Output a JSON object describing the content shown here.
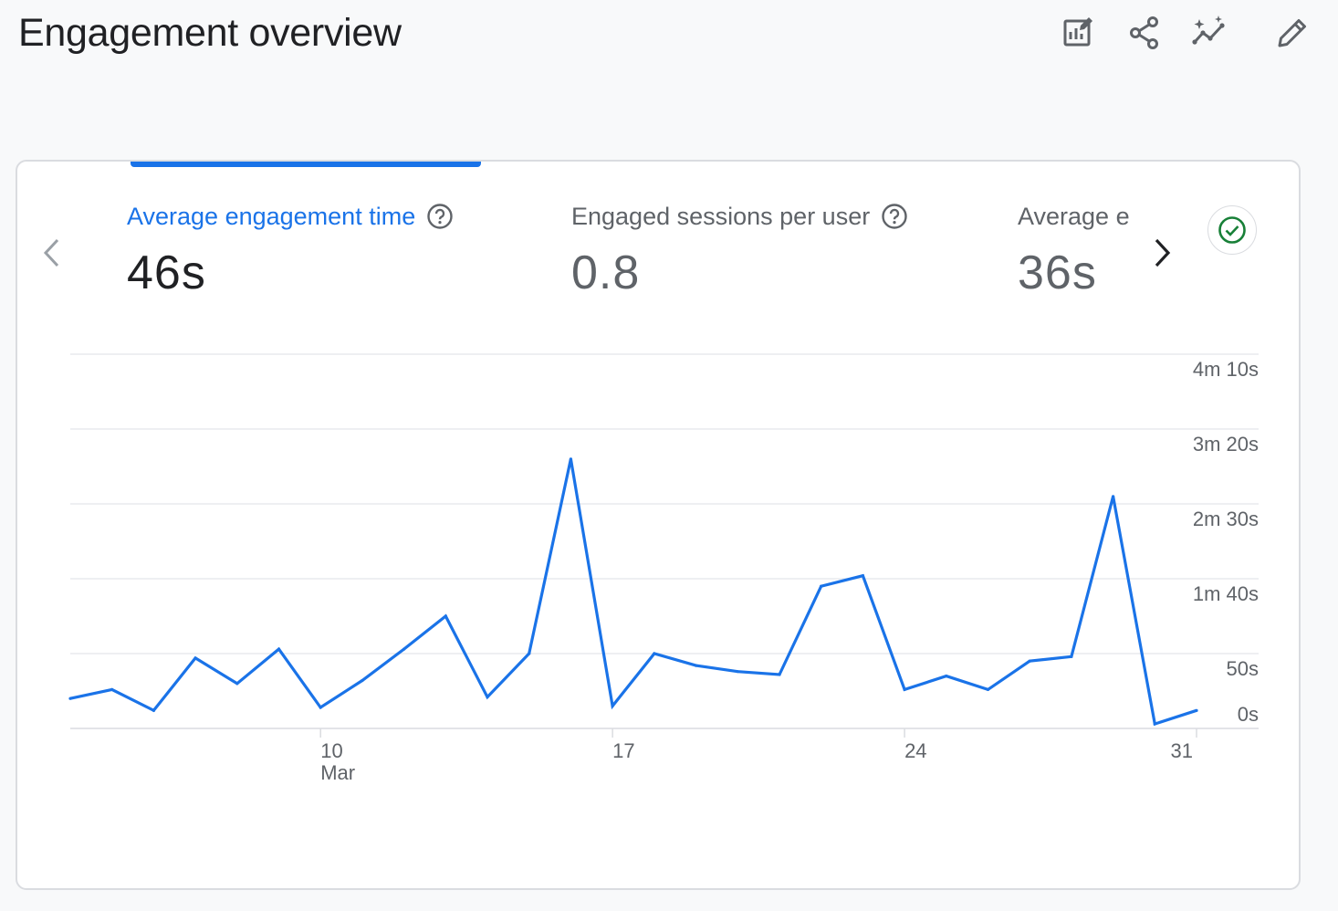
{
  "header": {
    "title": "Engagement overview",
    "actions": [
      {
        "name": "customize-report-icon",
        "label": ""
      },
      {
        "name": "share-icon",
        "label": ""
      },
      {
        "name": "insights-icon",
        "label": ""
      },
      {
        "name": "edit-icon",
        "label": ""
      }
    ]
  },
  "colors": {
    "accent": "#1a73e8",
    "text_primary": "#202124",
    "text_secondary": "#5f6368",
    "gridline": "#e0e0e0",
    "success": "#188038"
  },
  "metrics": [
    {
      "label": "Average engagement time",
      "value": "46s",
      "active": true
    },
    {
      "label": "Engaged sessions per user",
      "value": "0.8",
      "active": false
    },
    {
      "label": "Average e",
      "value": "36s",
      "active": false
    }
  ],
  "chart_data": {
    "type": "line",
    "y_tick_labels": [
      "4m 10s",
      "3m 20s",
      "2m 30s",
      "1m 40s",
      "50s",
      "0s"
    ],
    "y_ticks_seconds": [
      250,
      200,
      150,
      100,
      50,
      0
    ],
    "ylim": [
      0,
      250
    ],
    "x_ticks": [
      {
        "day": 10,
        "label": "10",
        "sublabel": "Mar"
      },
      {
        "day": 17,
        "label": "17",
        "sublabel": ""
      },
      {
        "day": 24,
        "label": "24",
        "sublabel": ""
      },
      {
        "day": 31,
        "label": "31",
        "sublabel": ""
      }
    ],
    "xlim": [
      4,
      31
    ],
    "grid": true,
    "series": [
      {
        "name": "",
        "color": "#1a73e8",
        "x": [
          4,
          5,
          6,
          7,
          8,
          9,
          10,
          11,
          12,
          13,
          14,
          15,
          16,
          17,
          18,
          19,
          20,
          21,
          22,
          23,
          24,
          25,
          26,
          27,
          28,
          29,
          30,
          31
        ],
        "values": [
          20,
          26,
          12,
          47,
          30,
          53,
          14,
          32,
          53,
          75,
          21,
          50,
          180,
          15,
          50,
          42,
          38,
          36,
          95,
          102,
          26,
          35,
          26,
          45,
          48,
          155,
          3,
          12
        ]
      }
    ]
  }
}
